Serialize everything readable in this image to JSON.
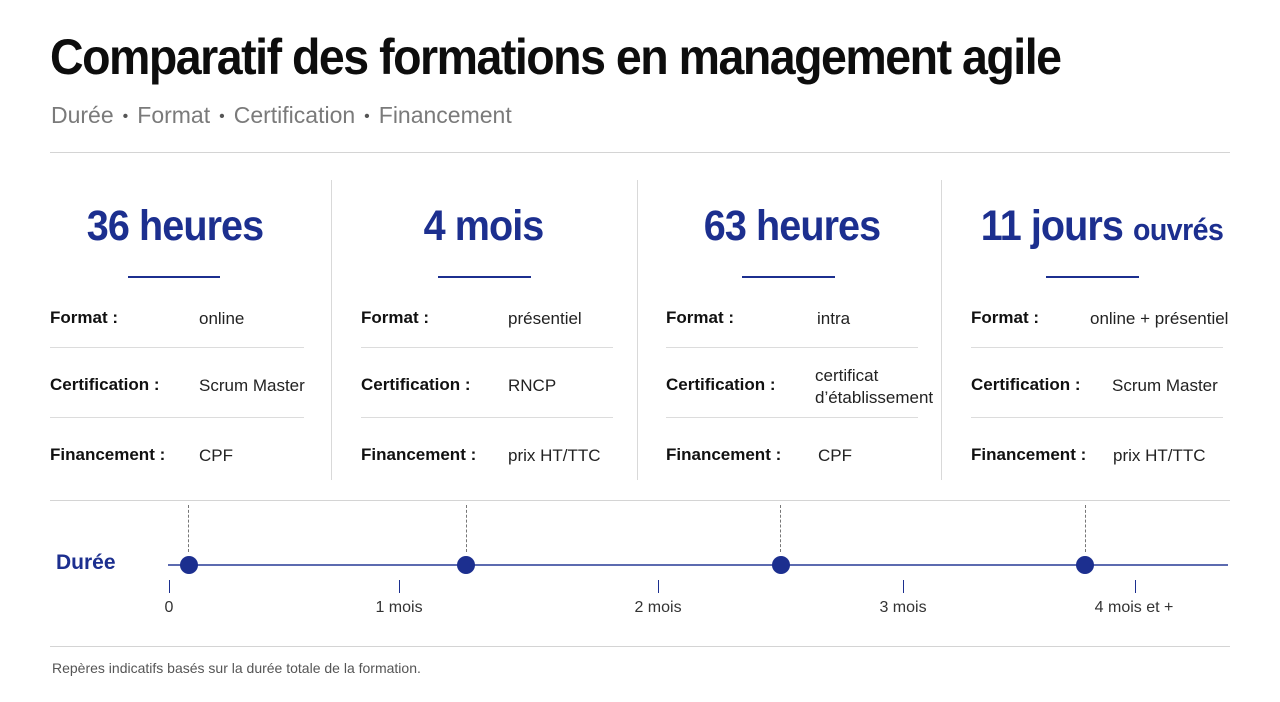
{
  "title": "Comparatif des formations en management agile",
  "subtitle": [
    "Durée",
    "Format",
    "Certification",
    "Financement"
  ],
  "accent_color": "#1c2f8f",
  "cards": [
    {
      "headline": "36 heures",
      "format_label": "Format :",
      "format_value": "online",
      "cert_label": "Certification :",
      "cert_value": "Scrum Master",
      "fin_label": "Financement :",
      "fin_value": "CPF"
    },
    {
      "headline": "4 mois",
      "format_label": "Format :",
      "format_value": "présentiel",
      "cert_label": "Certification :",
      "cert_value": "RNCP",
      "fin_label": "Financement :",
      "fin_value": "prix HT/TTC"
    },
    {
      "headline": "63 heures",
      "format_label": "Format :",
      "format_value": "intra",
      "cert_label": "Certification :",
      "cert_value": "certificat d’établissement",
      "fin_label": "Financement :",
      "fin_value": "CPF"
    },
    {
      "headline_main": "11 jours",
      "headline_small": "ouvrés",
      "format_label": "Format :",
      "format_value": "online + présentiel",
      "cert_label": "Certification :",
      "cert_value": "Scrum Master",
      "fin_label": "Financement :",
      "fin_value": "prix HT/TTC"
    }
  ],
  "timeline": {
    "label": "Durée",
    "ticks": [
      "0",
      "1 mois",
      "2 mois",
      "3 mois",
      "4 mois et +"
    ]
  },
  "footnote": "Repères indicatifs basés sur la durée totale de la formation."
}
